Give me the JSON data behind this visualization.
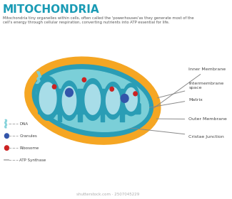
{
  "title": "MITOCHONDRIA",
  "title_color": "#1a9bb5",
  "subtitle": "Mitochondria tiny organelles within cells, often called the 'powerhouses'as they generate most of the\ncell's energy through cellular respiration, converting nutrients into ATP essential for life.",
  "subtitle_color": "#555555",
  "bg_color": "#ffffff",
  "outer_membrane_color": "#f5a623",
  "inner_membrane_color": "#2a9db5",
  "matrix_color": "#7bcfd8",
  "cristae_color": "#2a9db5",
  "cristae_inner_color": "#a8dde8",
  "labels_right": [
    "Inner Membrane",
    "Intermembrane\nspace",
    "Matrix",
    "Outer Membrane",
    "Cristae Junction"
  ],
  "label_color": "#444444",
  "legend_items": [
    {
      "label": "DNA",
      "color": "#7bcfd8",
      "type": "dna"
    },
    {
      "label": "Granules",
      "color": "#3355aa",
      "type": "circle"
    },
    {
      "label": "Ribosome",
      "color": "#cc2222",
      "type": "circle"
    },
    {
      "label": "ATP Synthase",
      "color": "#888888",
      "type": "line"
    }
  ],
  "watermark": "shutterstock.com · 2507045229"
}
